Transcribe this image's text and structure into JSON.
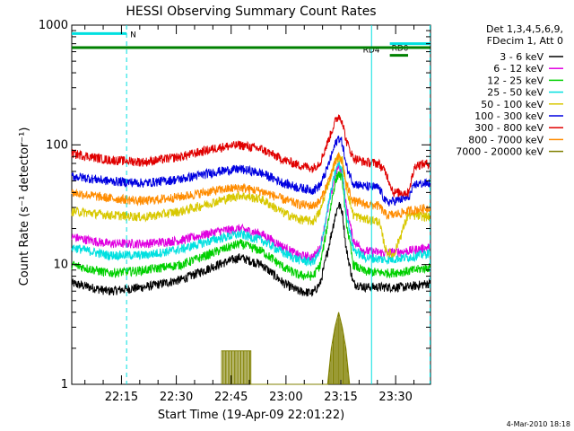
{
  "chart_data": {
    "type": "line",
    "title": "HESSI Observing Summary Count Rates",
    "xlabel": "Start Time (19-Apr-09 22:01:22)",
    "ylabel": "Count Rate (s⁻¹ detector⁻¹)",
    "y_scale": "log",
    "ylim": [
      1,
      1000
    ],
    "xlim": [
      "22:01:22",
      "23:39:30"
    ],
    "x_ticks": [
      "22:15",
      "22:30",
      "22:45",
      "23:00",
      "23:15",
      "23:30"
    ],
    "x_tick_minutes": [
      13.6,
      28.6,
      43.6,
      58.6,
      73.6,
      88.6
    ],
    "y_ticks": [
      1,
      10,
      100,
      1000
    ],
    "y_tick_labels": [
      "1",
      "10",
      "100",
      "1000"
    ],
    "grid": false,
    "legend_position": "right",
    "legend_header": [
      "Det 1,3,4,5,6,9,",
      "FDecim 1, Att 0"
    ],
    "footer_date": "4-Mar-2010 18:18",
    "x_unit": "minutes after start",
    "series": [
      {
        "name": "3 - 6 keV",
        "color": "#000000",
        "points": [
          [
            0,
            7
          ],
          [
            10,
            6
          ],
          [
            20,
            6.5
          ],
          [
            30,
            7.5
          ],
          [
            40,
            10
          ],
          [
            46,
            11.5
          ],
          [
            52,
            10
          ],
          [
            58,
            7
          ],
          [
            62,
            6
          ],
          [
            66,
            5.8
          ],
          [
            68,
            7
          ],
          [
            70,
            13
          ],
          [
            72,
            25
          ],
          [
            73,
            32
          ],
          [
            74,
            28
          ],
          [
            75,
            14
          ],
          [
            77,
            7
          ],
          [
            80,
            6.5
          ],
          [
            86,
            6.5
          ],
          [
            92,
            6.5
          ],
          [
            98,
            7
          ]
        ]
      },
      {
        "name": "6 - 12 keV",
        "color": "#e000e0",
        "points": [
          [
            0,
            17
          ],
          [
            10,
            15
          ],
          [
            20,
            15
          ],
          [
            30,
            16
          ],
          [
            40,
            19
          ],
          [
            46,
            20
          ],
          [
            52,
            18
          ],
          [
            58,
            14
          ],
          [
            62,
            12
          ],
          [
            66,
            11.5
          ],
          [
            68,
            14
          ],
          [
            70,
            28
          ],
          [
            72,
            55
          ],
          [
            73,
            67
          ],
          [
            74,
            58
          ],
          [
            75,
            32
          ],
          [
            77,
            16
          ],
          [
            80,
            13
          ],
          [
            86,
            12.5
          ],
          [
            92,
            13
          ],
          [
            98,
            14
          ]
        ]
      },
      {
        "name": "12 - 25 keV",
        "color": "#00d000",
        "points": [
          [
            0,
            10
          ],
          [
            10,
            8.5
          ],
          [
            20,
            9
          ],
          [
            30,
            10
          ],
          [
            40,
            13
          ],
          [
            46,
            15
          ],
          [
            52,
            13
          ],
          [
            58,
            9.5
          ],
          [
            62,
            8.2
          ],
          [
            66,
            8
          ],
          [
            68,
            10
          ],
          [
            70,
            22
          ],
          [
            72,
            48
          ],
          [
            73,
            58
          ],
          [
            74,
            52
          ],
          [
            75,
            24
          ],
          [
            77,
            10
          ],
          [
            80,
            8.8
          ],
          [
            86,
            8.5
          ],
          [
            92,
            8.8
          ],
          [
            98,
            9.5
          ]
        ]
      },
      {
        "name": "25 - 50 keV",
        "color": "#00e0e0",
        "points": [
          [
            0,
            14
          ],
          [
            10,
            12
          ],
          [
            20,
            12
          ],
          [
            30,
            13.5
          ],
          [
            40,
            16.5
          ],
          [
            46,
            18
          ],
          [
            52,
            16
          ],
          [
            58,
            12.5
          ],
          [
            62,
            11
          ],
          [
            66,
            10.5
          ],
          [
            68,
            13
          ],
          [
            70,
            30
          ],
          [
            72,
            58
          ],
          [
            73,
            70
          ],
          [
            74,
            62
          ],
          [
            75,
            28
          ],
          [
            77,
            13.5
          ],
          [
            80,
            11.5
          ],
          [
            86,
            11
          ],
          [
            92,
            11.5
          ],
          [
            98,
            12.5
          ]
        ]
      },
      {
        "name": "50 - 100 keV",
        "color": "#d8c800",
        "points": [
          [
            0,
            28
          ],
          [
            10,
            26
          ],
          [
            20,
            25
          ],
          [
            30,
            28
          ],
          [
            40,
            34
          ],
          [
            46,
            38
          ],
          [
            52,
            35
          ],
          [
            58,
            27
          ],
          [
            62,
            24
          ],
          [
            66,
            23
          ],
          [
            68,
            28
          ],
          [
            70,
            46
          ],
          [
            72,
            72
          ],
          [
            73,
            80
          ],
          [
            74,
            74
          ],
          [
            75,
            46
          ],
          [
            77,
            26
          ],
          [
            80,
            24
          ],
          [
            84,
            23
          ],
          [
            86,
            13
          ],
          [
            88,
            12
          ],
          [
            92,
            26
          ],
          [
            98,
            25
          ]
        ]
      },
      {
        "name": "100 - 300 keV",
        "color": "#0000e0",
        "points": [
          [
            0,
            55
          ],
          [
            10,
            50
          ],
          [
            20,
            48
          ],
          [
            30,
            52
          ],
          [
            40,
            60
          ],
          [
            46,
            63
          ],
          [
            52,
            58
          ],
          [
            58,
            48
          ],
          [
            62,
            44
          ],
          [
            66,
            42
          ],
          [
            68,
            46
          ],
          [
            70,
            65
          ],
          [
            72,
            100
          ],
          [
            73,
            115
          ],
          [
            74,
            105
          ],
          [
            75,
            68
          ],
          [
            77,
            48
          ],
          [
            80,
            45
          ],
          [
            84,
            44
          ],
          [
            86,
            33
          ],
          [
            88,
            34
          ],
          [
            92,
            36
          ],
          [
            94,
            47
          ],
          [
            98,
            48
          ]
        ]
      },
      {
        "name": "300 - 800 keV",
        "color": "#e00000",
        "points": [
          [
            0,
            85
          ],
          [
            10,
            75
          ],
          [
            20,
            72
          ],
          [
            30,
            80
          ],
          [
            40,
            95
          ],
          [
            46,
            100
          ],
          [
            52,
            92
          ],
          [
            58,
            75
          ],
          [
            62,
            68
          ],
          [
            66,
            64
          ],
          [
            68,
            72
          ],
          [
            70,
            105
          ],
          [
            72,
            155
          ],
          [
            73,
            175
          ],
          [
            74,
            160
          ],
          [
            75,
            110
          ],
          [
            77,
            78
          ],
          [
            80,
            72
          ],
          [
            84,
            70
          ],
          [
            86,
            58
          ],
          [
            88,
            40
          ],
          [
            92,
            40
          ],
          [
            94,
            68
          ],
          [
            98,
            70
          ]
        ]
      },
      {
        "name": "800 - 7000 keV",
        "color": "#ff8c00",
        "points": [
          [
            0,
            40
          ],
          [
            10,
            36
          ],
          [
            20,
            34
          ],
          [
            30,
            37
          ],
          [
            40,
            42
          ],
          [
            46,
            44
          ],
          [
            52,
            41
          ],
          [
            58,
            35
          ],
          [
            62,
            32
          ],
          [
            66,
            31
          ],
          [
            68,
            34
          ],
          [
            70,
            48
          ],
          [
            72,
            70
          ],
          [
            73,
            80
          ],
          [
            74,
            72
          ],
          [
            75,
            48
          ],
          [
            77,
            34
          ],
          [
            80,
            32
          ],
          [
            84,
            31
          ],
          [
            86,
            26
          ],
          [
            88,
            26
          ],
          [
            92,
            28
          ],
          [
            98,
            30
          ]
        ]
      },
      {
        "name": "7000 - 20000 keV",
        "color": "#808000",
        "points": [
          [
            41,
            1
          ],
          [
            41,
            1.9
          ],
          [
            44,
            1.9
          ],
          [
            47,
            1.9
          ],
          [
            49,
            1.9
          ],
          [
            49,
            1
          ],
          [
            70,
            1
          ],
          [
            71,
            2
          ],
          [
            72,
            3
          ],
          [
            73,
            4
          ],
          [
            74,
            3
          ],
          [
            75,
            2
          ],
          [
            76,
            1
          ]
        ]
      }
    ],
    "annotations": [
      {
        "text": "N",
        "color": "#00e0e0",
        "y": 850,
        "x_from": 0,
        "x_to": 15
      },
      {
        "text": "RD0",
        "color": "#00e0e0",
        "y": 700,
        "x_from": 87,
        "x_to": 98
      },
      {
        "text": "RD4",
        "color": "#008000",
        "y": 560,
        "x_from": 87,
        "x_to": 92
      },
      {
        "color": "#008000",
        "y": 650,
        "x_from": 0,
        "x_to": 98
      }
    ],
    "vlines": [
      {
        "color": "#00e0e0",
        "dash": true,
        "x": 15
      },
      {
        "color": "#00e0e0",
        "dash": false,
        "x": 82
      },
      {
        "color": "#00e0e0",
        "dash": true,
        "x": 98
      }
    ]
  }
}
